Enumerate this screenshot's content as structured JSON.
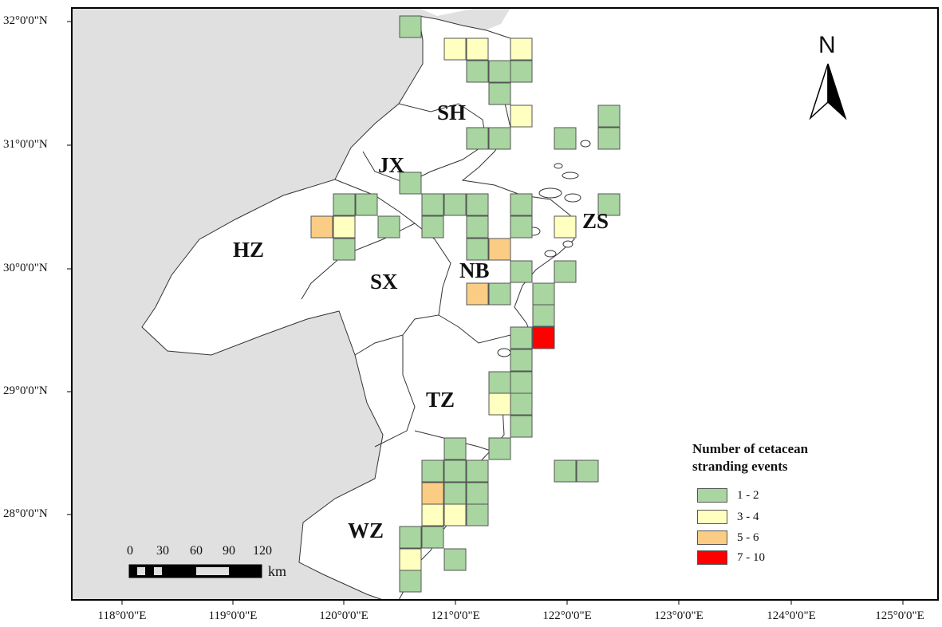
{
  "map": {
    "lat_labels": [
      "32°0'0\"N",
      "31°0'0\"N",
      "30°0'0\"N",
      "29°0'0\"N",
      "28°0'0\"N"
    ],
    "lon_labels": [
      "118°0'0\"E",
      "119°0'0\"E",
      "120°0'0\"E",
      "121°0'0\"E",
      "122°0'0\"E",
      "123°0'0\"E",
      "124°0'0\"E",
      "125°0'0\"E"
    ],
    "regions": [
      "SH",
      "JX",
      "HZ",
      "SX",
      "NB",
      "ZS",
      "TZ",
      "WZ"
    ],
    "colors": {
      "land_other": "#e0e0e0",
      "land_study": "#ffffff",
      "sea": "#ffffff",
      "class_1_2": "#a8d5a0",
      "class_3_4": "#ffffc0",
      "class_5_6": "#fbcd84",
      "class_7_10": "#ff0000"
    }
  },
  "north_arrow": {
    "label": "N"
  },
  "scale_bar": {
    "ticks": [
      "0",
      "30",
      "60",
      "90",
      "120"
    ],
    "unit": "km"
  },
  "legend": {
    "title_line1": "Number of cetacean",
    "title_line2": "stranding events",
    "items": [
      {
        "label": "1 - 2",
        "color": "#a8d5a0"
      },
      {
        "label": "3 - 4",
        "color": "#ffffc0"
      },
      {
        "label": "5 - 6",
        "color": "#fbcd84"
      },
      {
        "label": "7 - 10",
        "color": "#ff0000"
      }
    ]
  }
}
